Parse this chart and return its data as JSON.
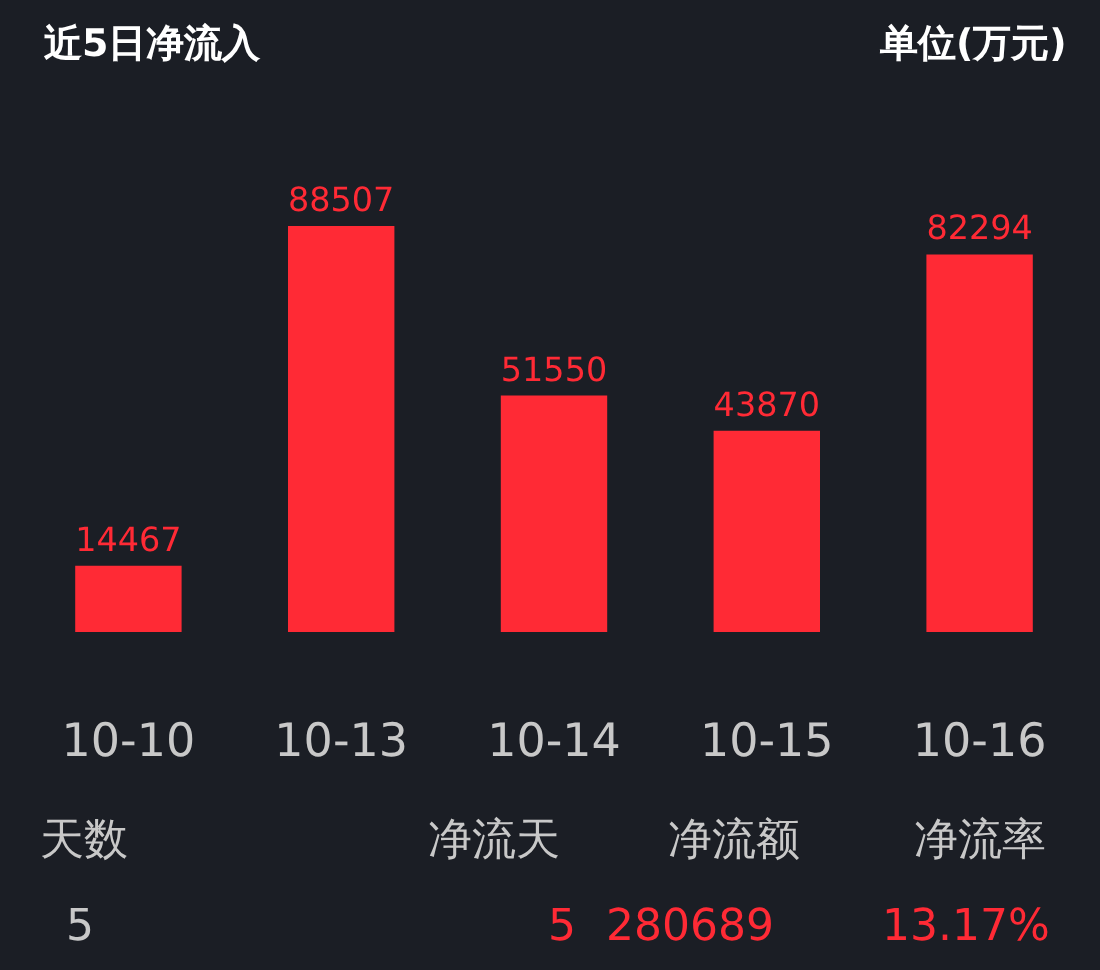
{
  "chart_data": {
    "type": "bar",
    "title": "近5日净流入",
    "subtitle": "单位(万元)",
    "categories": [
      "10-10",
      "10-13",
      "10-14",
      "10-15",
      "10-16"
    ],
    "values": [
      14467,
      88507,
      51550,
      43870,
      82294
    ],
    "color": "#ff2a35",
    "data_labels": true,
    "grid": false,
    "legend": false,
    "annotations": [
      "天数",
      "5",
      "净流天",
      "净流额",
      "净流率",
      "5",
      "280689",
      "13.17%"
    ]
  }
}
